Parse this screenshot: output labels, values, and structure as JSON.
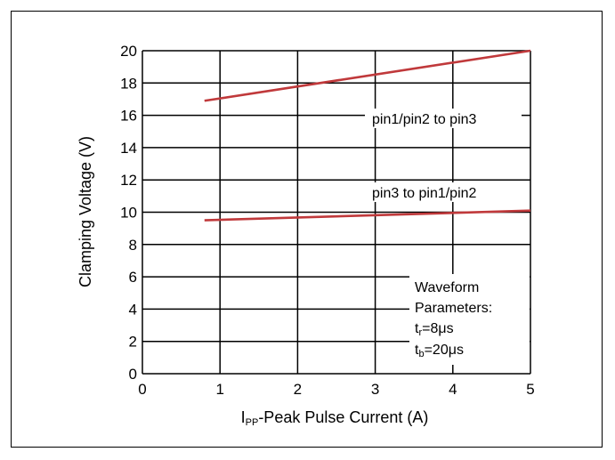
{
  "chart_data": {
    "type": "line",
    "title": "",
    "xlabel": "I_PP-Peak Pulse Current (A)",
    "xlabel_parts": {
      "main": "I",
      "sub": "PP",
      "rest": "-Peak Pulse Current (A)"
    },
    "ylabel": "Clamping Voltage (V)",
    "xlim": [
      0,
      5
    ],
    "ylim": [
      0,
      20
    ],
    "xticks": [
      0,
      1,
      2,
      3,
      4,
      5
    ],
    "yticks": [
      0,
      2,
      4,
      6,
      8,
      10,
      12,
      14,
      16,
      18,
      20
    ],
    "grid": true,
    "line_color": "#c0393b",
    "series": [
      {
        "name": "pin1/pin2 to pin3",
        "x": [
          0.8,
          5.0
        ],
        "y": [
          16.9,
          20.0
        ]
      },
      {
        "name": "pin3 to pin1/pin2",
        "x": [
          0.8,
          5.0
        ],
        "y": [
          9.5,
          10.1
        ]
      }
    ],
    "annotations": {
      "waveform_lines": [
        "Waveform",
        "Parameters:"
      ],
      "tr": {
        "main": "t",
        "sub": "r",
        "rest": "=8μs"
      },
      "tb": {
        "main": "t",
        "sub": "b",
        "rest": "=20μs"
      }
    }
  }
}
